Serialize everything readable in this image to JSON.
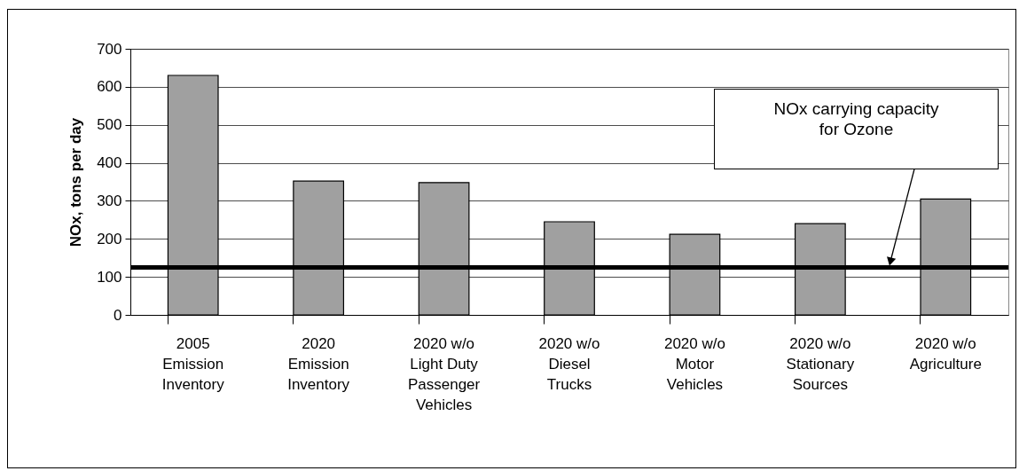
{
  "chart_data": {
    "type": "bar",
    "ylabel": "NOx, tons per day",
    "categories": [
      "2005 Emission Inventory",
      "2020 Emission Inventory",
      "2020 w/o Light Duty Passenger Vehicles",
      "2020 w/o Diesel Trucks",
      "2020 w/o Motor Vehicles",
      "2020 w/o Stationary Sources",
      "2020 w/o Agriculture"
    ],
    "values": [
      630,
      352,
      348,
      245,
      212,
      240,
      305
    ],
    "color": "#a0a0a0",
    "ylim": [
      0,
      700
    ],
    "yticks": [
      0,
      100,
      200,
      300,
      400,
      500,
      600,
      700
    ],
    "grid": "y",
    "ref_lines": [
      {
        "axis": "y",
        "value": 125,
        "label": "NOx carrying capacity for Ozone",
        "color": "#000000"
      }
    ]
  }
}
